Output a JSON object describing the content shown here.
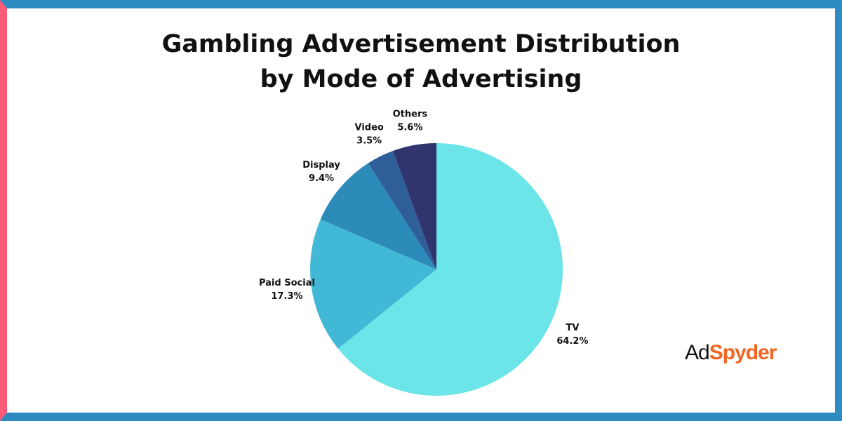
{
  "chart_data": {
    "type": "pie",
    "title": "Gambling Advertisement Distribution by Mode of Advertising",
    "categories": [
      "TV",
      "Paid Social",
      "Display",
      "Video",
      "Others"
    ],
    "values": [
      64.2,
      17.3,
      9.4,
      3.5,
      5.6
    ],
    "value_labels": [
      "64.2%",
      "17.3%",
      "9.4%",
      "3.5%",
      "5.6%"
    ],
    "colors": [
      "#6ce5e8",
      "#41b8d5",
      "#2d8bba",
      "#2f5f98",
      "#31356e"
    ]
  },
  "brand": [
    "Ad",
    "Spyder"
  ]
}
